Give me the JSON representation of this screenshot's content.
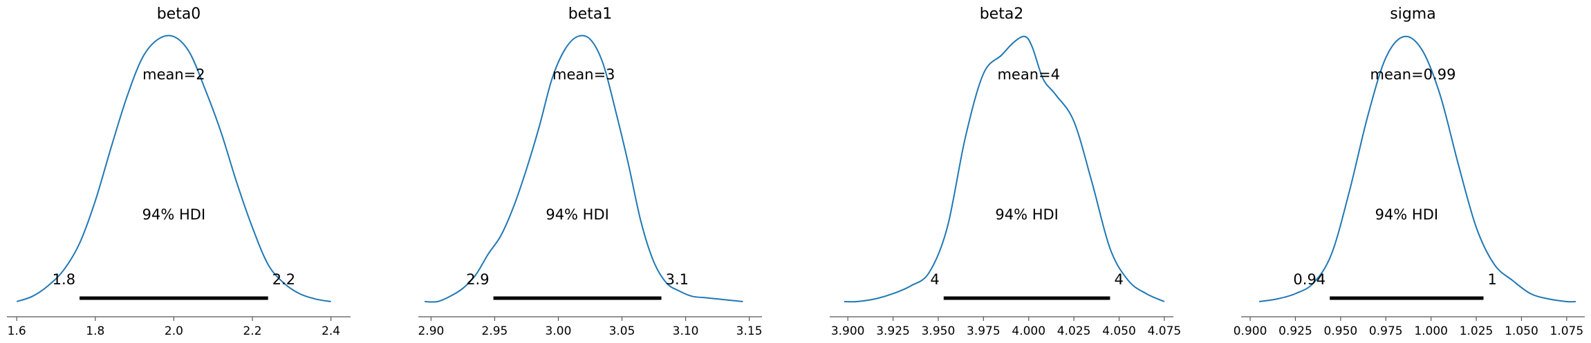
{
  "colors": {
    "density_line": "#1f77b4",
    "hdi_bar": "#000000",
    "axis": "#555555",
    "text": "#000000"
  },
  "chart_data": [
    {
      "type": "line",
      "title": "beta0",
      "xlim": [
        1.575,
        2.45
      ],
      "xticks": [
        1.6,
        1.8,
        2.0,
        2.2,
        2.4
      ],
      "xtick_labels": [
        "1.6",
        "1.8",
        "2.0",
        "2.2",
        "2.4"
      ],
      "mean": 2.0,
      "mean_label": "mean=2",
      "hdi_label": "94% HDI",
      "hdi": [
        1.76,
        2.24
      ],
      "hdi_low_label": "1.8",
      "hdi_high_label": "2.2",
      "density": {
        "x": [
          1.6,
          1.64,
          1.68,
          1.72,
          1.76,
          1.8,
          1.84,
          1.88,
          1.92,
          1.96,
          2.0,
          2.04,
          2.08,
          2.12,
          2.16,
          2.2,
          2.24,
          2.28,
          2.32,
          2.36,
          2.4
        ],
        "y": [
          0.0,
          0.02,
          0.06,
          0.12,
          0.22,
          0.38,
          0.58,
          0.77,
          0.92,
          0.99,
          1.0,
          0.94,
          0.8,
          0.64,
          0.45,
          0.28,
          0.14,
          0.07,
          0.03,
          0.01,
          0.0
        ]
      }
    },
    {
      "type": "line",
      "title": "beta1",
      "xlim": [
        2.89,
        3.16
      ],
      "xticks": [
        2.9,
        2.95,
        3.0,
        3.05,
        3.1,
        3.15
      ],
      "xtick_labels": [
        "2.90",
        "2.95",
        "3.00",
        "3.05",
        "3.10",
        "3.15"
      ],
      "mean": 3.02,
      "mean_label": "mean=3",
      "hdi_label": "94% HDI",
      "hdi": [
        2.949,
        3.081
      ],
      "hdi_low_label": "2.9",
      "hdi_high_label": "3.1",
      "density": {
        "x": [
          2.895,
          2.905,
          2.915,
          2.925,
          2.935,
          2.945,
          2.955,
          2.965,
          2.975,
          2.985,
          2.995,
          3.005,
          3.015,
          3.025,
          3.035,
          3.045,
          3.055,
          3.065,
          3.075,
          3.085,
          3.095,
          3.105,
          3.115,
          3.125,
          3.135,
          3.145
        ],
        "y": [
          0.0,
          0.0,
          0.02,
          0.05,
          0.1,
          0.18,
          0.25,
          0.36,
          0.5,
          0.66,
          0.84,
          0.95,
          1.0,
          0.99,
          0.9,
          0.72,
          0.52,
          0.3,
          0.15,
          0.07,
          0.04,
          0.02,
          0.015,
          0.01,
          0.005,
          0.0
        ]
      }
    },
    {
      "type": "line",
      "title": "beta2",
      "xlim": [
        3.89,
        4.08
      ],
      "xticks": [
        3.9,
        3.925,
        3.95,
        3.975,
        4.0,
        4.025,
        4.05,
        4.075
      ],
      "xtick_labels": [
        "3.900",
        "3.925",
        "3.950",
        "3.975",
        "4.000",
        "4.025",
        "4.050",
        "4.075"
      ],
      "mean": 4.0,
      "mean_label": "mean=4",
      "hdi_label": "94% HDI",
      "hdi": [
        3.953,
        4.045
      ],
      "hdi_low_label": "4",
      "hdi_high_label": "4",
      "density": {
        "x": [
          3.898,
          3.905,
          3.915,
          3.925,
          3.935,
          3.945,
          3.955,
          3.965,
          3.975,
          3.985,
          3.992,
          3.998,
          4.002,
          4.008,
          4.015,
          4.025,
          4.035,
          4.045,
          4.055,
          4.065,
          4.075
        ],
        "y": [
          0.0,
          0.0,
          0.01,
          0.03,
          0.06,
          0.11,
          0.28,
          0.62,
          0.86,
          0.93,
          0.98,
          1.0,
          0.96,
          0.84,
          0.78,
          0.68,
          0.45,
          0.2,
          0.08,
          0.03,
          0.0
        ]
      }
    },
    {
      "type": "line",
      "title": "sigma",
      "xlim": [
        0.895,
        1.085
      ],
      "xticks": [
        0.9,
        0.925,
        0.95,
        0.975,
        1.0,
        1.025,
        1.05,
        1.075
      ],
      "xtick_labels": [
        "0.900",
        "0.925",
        "0.950",
        "0.975",
        "1.000",
        "1.025",
        "1.050",
        "1.075"
      ],
      "mean": 0.99,
      "mean_label": "mean=0.99",
      "hdi_label": "94% HDI",
      "hdi": [
        0.944,
        1.029
      ],
      "hdi_low_label": "0.94",
      "hdi_high_label": "1",
      "density": {
        "x": [
          0.905,
          0.915,
          0.925,
          0.935,
          0.945,
          0.955,
          0.965,
          0.975,
          0.985,
          0.995,
          1.005,
          1.015,
          1.025,
          1.035,
          1.045,
          1.055,
          1.065,
          1.075,
          1.08
        ],
        "y": [
          0.0,
          0.01,
          0.03,
          0.07,
          0.18,
          0.42,
          0.7,
          0.92,
          1.0,
          0.95,
          0.78,
          0.52,
          0.28,
          0.14,
          0.08,
          0.03,
          0.01,
          0.0,
          0.0
        ]
      }
    }
  ]
}
